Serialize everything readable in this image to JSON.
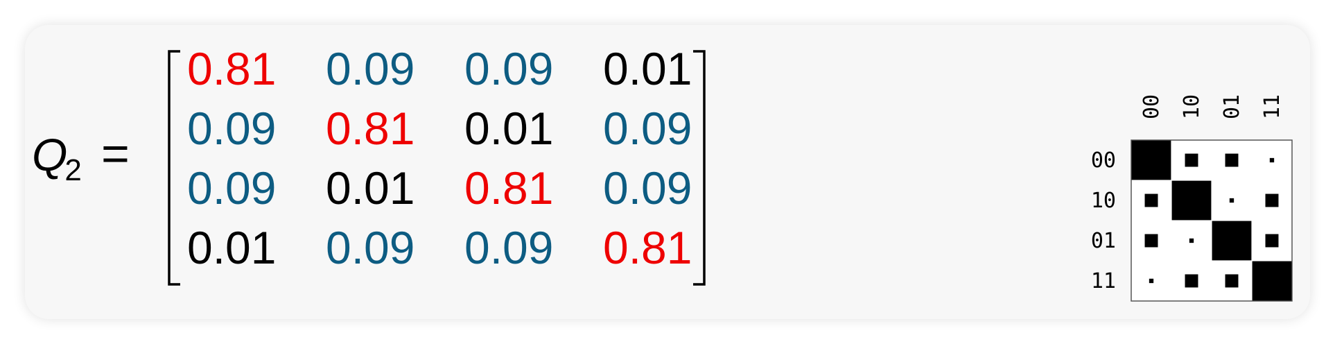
{
  "equation": {
    "symbol": "Q",
    "subscript": "2",
    "equals": "="
  },
  "matrix": {
    "rows": [
      [
        "0.81",
        "0.09",
        "0.09",
        "0.01"
      ],
      [
        "0.09",
        "0.81",
        "0.01",
        "0.09"
      ],
      [
        "0.09",
        "0.01",
        "0.81",
        "0.09"
      ],
      [
        "0.01",
        "0.09",
        "0.09",
        "0.81"
      ]
    ]
  },
  "colors": {
    "high": "#ee0000",
    "mid": "#0d5c82",
    "low": "#000000"
  },
  "hinton": {
    "row_labels": [
      "00",
      "10",
      "01",
      "11"
    ],
    "col_labels": [
      "00",
      "10",
      "01",
      "11"
    ],
    "values": [
      [
        0.81,
        0.09,
        0.09,
        0.01
      ],
      [
        0.09,
        0.81,
        0.01,
        0.09
      ],
      [
        0.09,
        0.01,
        0.81,
        0.09
      ],
      [
        0.01,
        0.09,
        0.09,
        0.81
      ]
    ]
  }
}
